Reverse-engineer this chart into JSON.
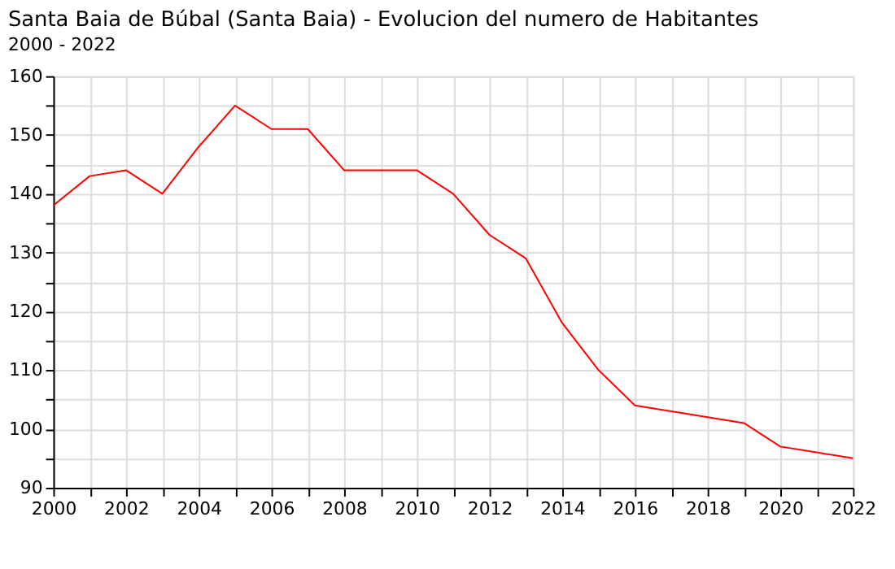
{
  "chart_data": {
    "type": "line",
    "title": "Santa Baia de Búbal (Santa Baia) - Evolucion del numero de Habitantes",
    "subtitle": "2000 - 2022",
    "x": [
      2000,
      2001,
      2002,
      2003,
      2004,
      2005,
      2006,
      2007,
      2008,
      2009,
      2010,
      2011,
      2012,
      2013,
      2014,
      2015,
      2016,
      2017,
      2018,
      2019,
      2020,
      2021,
      2022
    ],
    "series": [
      {
        "color": "#ff0000",
        "values": [
          138,
          143,
          144,
          140,
          148,
          155,
          151,
          151,
          144,
          144,
          144,
          140,
          133,
          129,
          118,
          110,
          104,
          103,
          102,
          101,
          97,
          96,
          95
        ]
      }
    ],
    "xlim": [
      2000,
      2022
    ],
    "xticks": [
      2000,
      {
        "value": 2001,
        "label": null
      },
      2002,
      {
        "value": 2003,
        "label": null
      },
      2004,
      {
        "value": 2005,
        "label": null
      },
      2006,
      {
        "value": 2007,
        "label": null
      },
      2008,
      {
        "value": 2009,
        "label": null
      },
      2010,
      {
        "value": 2011,
        "label": null
      },
      2012,
      {
        "value": 2013,
        "label": null
      },
      2014,
      {
        "value": 2015,
        "label": null
      },
      2016,
      {
        "value": 2017,
        "label": null
      },
      2018,
      {
        "value": 2019,
        "label": null
      },
      2020,
      {
        "value": 2021,
        "label": null
      },
      2022
    ],
    "ylim": [
      90,
      160
    ],
    "yticks": [
      90,
      {
        "value": 95,
        "label": null
      },
      100,
      {
        "value": 105,
        "label": null
      },
      110,
      {
        "value": 115,
        "label": null
      },
      120,
      {
        "value": 125,
        "label": null
      },
      130,
      {
        "value": 135,
        "label": null
      },
      140,
      {
        "value": 145,
        "label": null
      },
      150,
      {
        "value": 155,
        "label": null
      },
      160
    ],
    "grid": true,
    "marker": "none",
    "line_style": "solid"
  }
}
